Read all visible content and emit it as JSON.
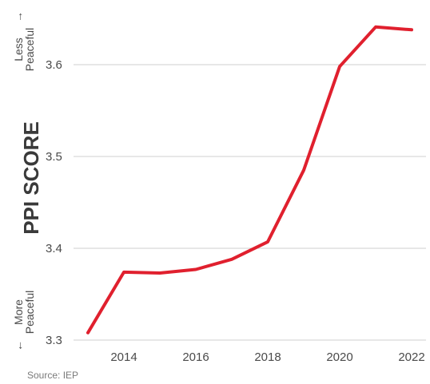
{
  "chart_data": {
    "type": "line",
    "x": [
      2013,
      2014,
      2015,
      2016,
      2017,
      2018,
      2019,
      2020,
      2021,
      2022
    ],
    "series": [
      {
        "values": [
          3.308,
          3.374,
          3.373,
          3.377,
          3.388,
          3.407,
          3.485,
          3.598,
          3.641,
          3.638
        ],
        "color": "#e0202e"
      }
    ],
    "ylabel": "PPI SCORE",
    "xlim": [
      2012.6,
      2022.4
    ],
    "ylim": [
      3.3,
      3.66
    ],
    "x_ticks": [
      "2014",
      "2016",
      "2018",
      "2020",
      "2022"
    ],
    "y_ticks": [
      "3.3",
      "3.4",
      "3.5",
      "3.6"
    ],
    "grid": {
      "horizontal": true,
      "color": "#cfcfcf"
    },
    "top_annotation": {
      "line1": "Less",
      "line2": "Peaceful",
      "arrow": "→"
    },
    "bottom_annotation": {
      "line1": "More",
      "line2": "Peaceful",
      "arrow": "←"
    },
    "source": "Source: IEP"
  }
}
